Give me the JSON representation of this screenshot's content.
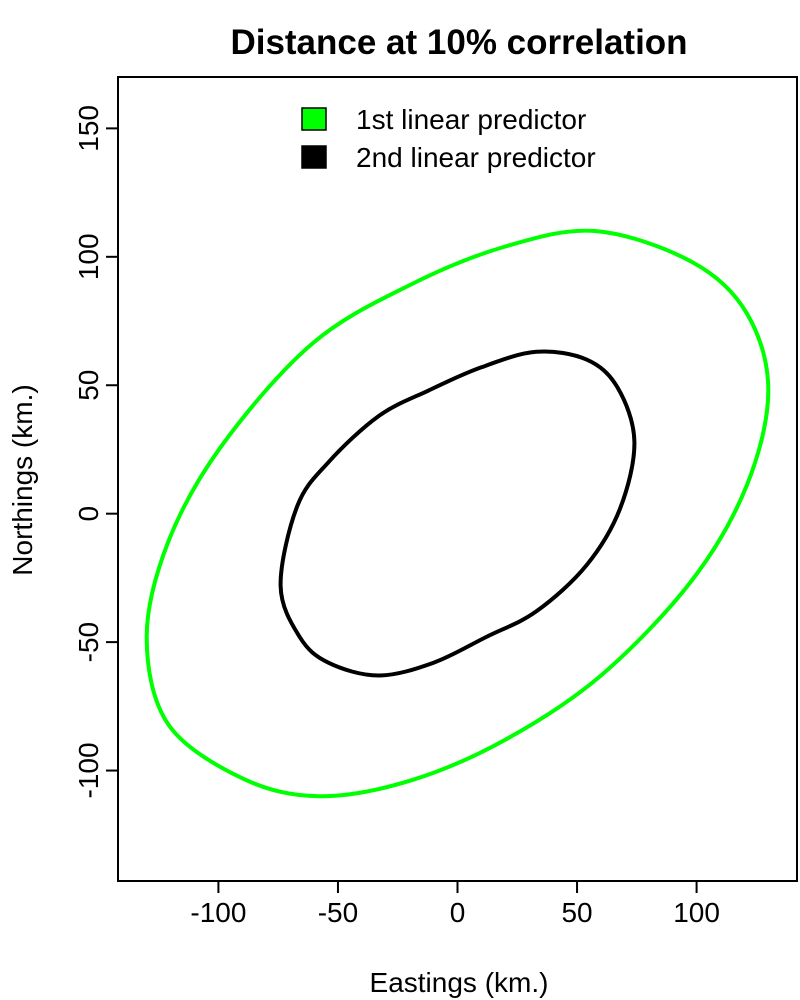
{
  "chart_data": {
    "type": "line",
    "title": "Distance at 10% correlation",
    "xlabel": "Eastings (km.)",
    "ylabel": "Northings (km.)",
    "xlim": [
      -142,
      142
    ],
    "ylim": [
      -143,
      170
    ],
    "x_ticks": [
      -100,
      -50,
      0,
      50,
      100
    ],
    "y_ticks": [
      -100,
      -50,
      0,
      50,
      100,
      150
    ],
    "grid": false,
    "legend_position": "top",
    "series": [
      {
        "name": "1st linear predictor",
        "color": "#00ff00",
        "points": [
          [
            130,
            48
          ],
          [
            121,
            78
          ],
          [
            98,
            98
          ],
          [
            58,
            110
          ],
          [
            20,
            104
          ],
          [
            -20,
            89
          ],
          [
            -61,
            66
          ],
          [
            -99,
            26
          ],
          [
            -121,
            -11
          ],
          [
            -130,
            -48
          ],
          [
            -121,
            -82
          ],
          [
            -90,
            -103
          ],
          [
            -58,
            -110
          ],
          [
            -20,
            -104
          ],
          [
            20,
            -88
          ],
          [
            60,
            -63
          ],
          [
            98,
            -26
          ],
          [
            121,
            11
          ],
          [
            130,
            48
          ]
        ]
      },
      {
        "name": "2nd linear predictor",
        "color": "#000000",
        "points": [
          [
            74,
            28
          ],
          [
            67,
            49
          ],
          [
            54,
            60
          ],
          [
            33,
            63
          ],
          [
            10,
            57
          ],
          [
            -12,
            48
          ],
          [
            -33,
            38
          ],
          [
            -54,
            20
          ],
          [
            -67,
            3
          ],
          [
            -74,
            -28
          ],
          [
            -66,
            -48
          ],
          [
            -54,
            -58
          ],
          [
            -33,
            -63
          ],
          [
            -10,
            -58
          ],
          [
            12,
            -48
          ],
          [
            33,
            -38
          ],
          [
            54,
            -20
          ],
          [
            68,
            2
          ],
          [
            74,
            28
          ]
        ]
      }
    ]
  }
}
